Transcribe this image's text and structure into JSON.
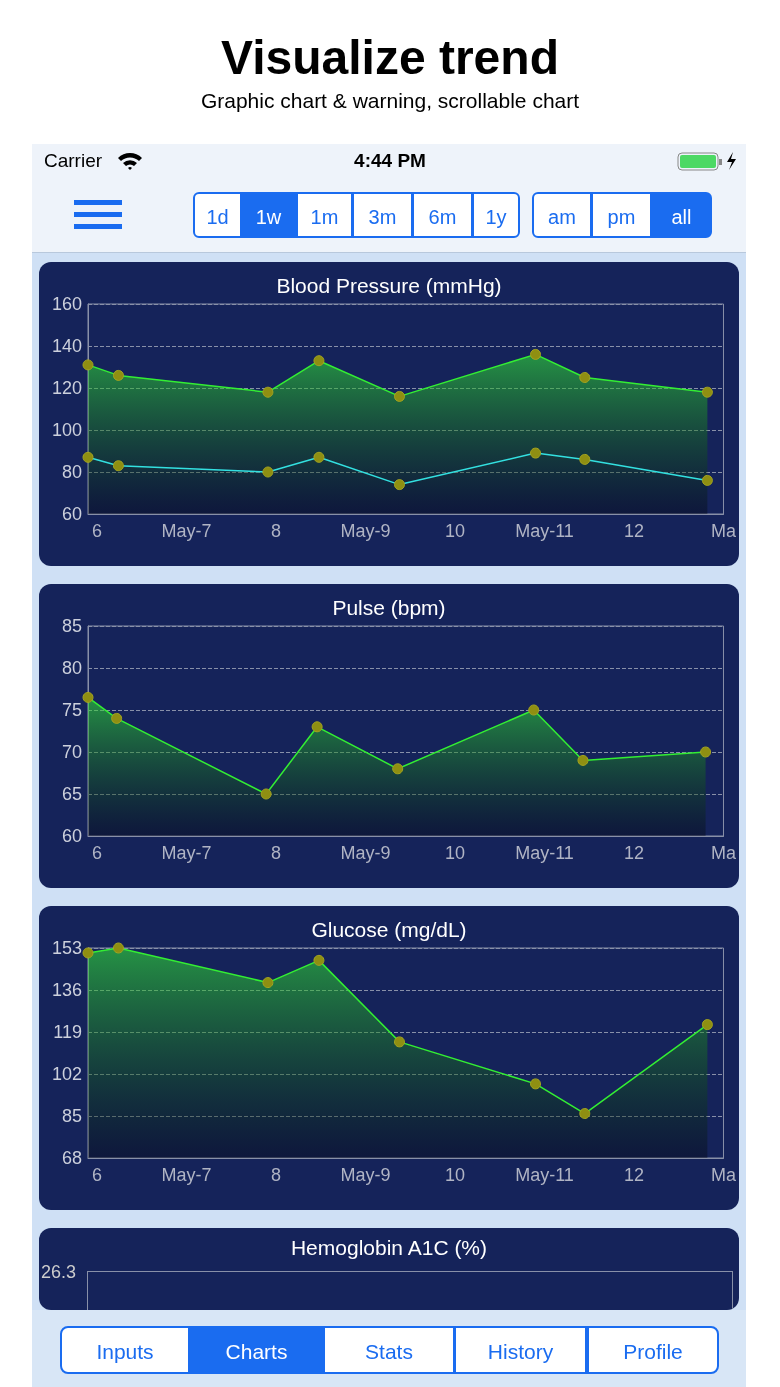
{
  "chart_data": [
    {
      "type": "other",
      "title": "Visualize trend",
      "subtitle": "Graphic chart & warning, scrollable chart",
      "annotations": [
        "Carrier",
        "4:44 PM",
        "1d",
        "1w",
        "1m",
        "3m",
        "6m",
        "1y",
        "am",
        "pm",
        "all",
        "Inputs",
        "Charts",
        "Stats",
        "History",
        "Profile"
      ]
    },
    {
      "type": "area",
      "title": "Blood Pressure (mmHg)",
      "series": [
        {
          "type": "area",
          "color": "#33ee33",
          "x": [
            5.9,
            6.24,
            7.91,
            8.48,
            9.38,
            10.9,
            11.45,
            12.82
          ],
          "values": [
            131,
            126,
            118,
            133,
            116,
            136,
            125,
            118
          ]
        },
        {
          "type": "line",
          "color": "#33e0e0",
          "x": [
            5.9,
            6.24,
            7.91,
            8.48,
            9.38,
            10.9,
            11.45,
            12.82
          ],
          "values": [
            87,
            83,
            80,
            87,
            74,
            89,
            86,
            76
          ]
        }
      ],
      "xlim": [
        5.9,
        13
      ],
      "xticks": [
        {
          "value": 6,
          "label": "6"
        },
        {
          "value": 7,
          "label": "May-7"
        },
        {
          "value": 8,
          "label": "8"
        },
        {
          "value": 9,
          "label": "May-9"
        },
        {
          "value": 10,
          "label": "10"
        },
        {
          "value": 11,
          "label": "May-11"
        },
        {
          "value": 12,
          "label": "12"
        },
        {
          "value": 13,
          "label": "Ma"
        }
      ],
      "ylim": [
        60,
        160
      ],
      "yticks": [
        60,
        80,
        100,
        120,
        140,
        160
      ],
      "grid": "y",
      "marker": "circle",
      "line_style": "solid"
    },
    {
      "type": "area",
      "title": "Pulse (bpm)",
      "series": [
        {
          "color": "#33ee33",
          "x": [
            5.9,
            6.22,
            7.89,
            8.46,
            9.36,
            10.88,
            11.43,
            12.8
          ],
          "values": [
            76.5,
            74,
            65,
            73,
            68,
            75,
            69,
            70
          ]
        }
      ],
      "xlim": [
        5.9,
        13
      ],
      "xticks": [
        {
          "value": 6,
          "label": "6"
        },
        {
          "value": 7,
          "label": "May-7"
        },
        {
          "value": 8,
          "label": "8"
        },
        {
          "value": 9,
          "label": "May-9"
        },
        {
          "value": 10,
          "label": "10"
        },
        {
          "value": 11,
          "label": "May-11"
        },
        {
          "value": 12,
          "label": "12"
        },
        {
          "value": 13,
          "label": "Ma"
        }
      ],
      "ylim": [
        60,
        85
      ],
      "yticks": [
        60,
        65,
        70,
        75,
        80,
        85
      ],
      "grid": "y",
      "marker": "circle",
      "line_style": "solid"
    },
    {
      "type": "area",
      "title": "Glucose (mg/dL)",
      "series": [
        {
          "color": "#33ee33",
          "x": [
            5.9,
            6.24,
            7.91,
            8.48,
            9.38,
            10.9,
            11.45,
            12.82
          ],
          "values": [
            151,
            153,
            139,
            148,
            115,
            98,
            86,
            122
          ]
        }
      ],
      "xlim": [
        5.9,
        13
      ],
      "xticks": [
        {
          "value": 6,
          "label": "6"
        },
        {
          "value": 7,
          "label": "May-7"
        },
        {
          "value": 8,
          "label": "8"
        },
        {
          "value": 9,
          "label": "May-9"
        },
        {
          "value": 10,
          "label": "10"
        },
        {
          "value": 11,
          "label": "May-11"
        },
        {
          "value": 12,
          "label": "12"
        },
        {
          "value": 13,
          "label": "Ma"
        }
      ],
      "ylim": [
        68,
        153
      ],
      "yticks": [
        68,
        85,
        102,
        119,
        136,
        153
      ],
      "grid": "y",
      "marker": "circle",
      "line_style": "solid"
    },
    {
      "type": "other",
      "title": "Hemoglobin A1C (%)",
      "annotations": [
        "26.3"
      ]
    }
  ]
}
